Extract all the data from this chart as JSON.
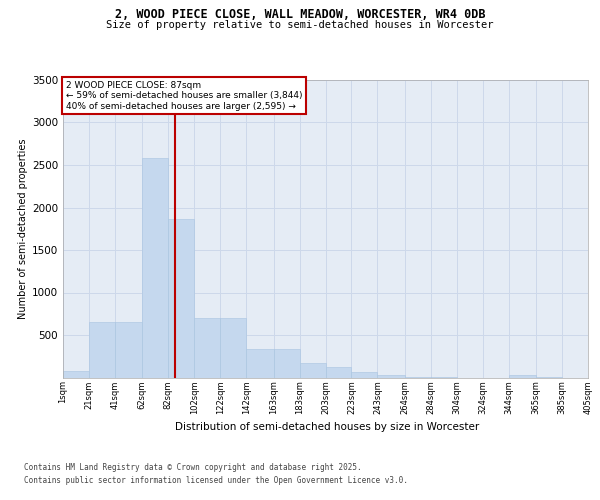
{
  "title1": "2, WOOD PIECE CLOSE, WALL MEADOW, WORCESTER, WR4 0DB",
  "title2": "Size of property relative to semi-detached houses in Worcester",
  "xlabel": "Distribution of semi-detached houses by size in Worcester",
  "ylabel": "Number of semi-detached properties",
  "annotation_title": "2 WOOD PIECE CLOSE: 87sqm",
  "annotation_line1": "← 59% of semi-detached houses are smaller (3,844)",
  "annotation_line2": "40% of semi-detached houses are larger (2,595) →",
  "footer1": "Contains HM Land Registry data © Crown copyright and database right 2025.",
  "footer2": "Contains public sector information licensed under the Open Government Licence v3.0.",
  "bin_edges": [
    1,
    21,
    41,
    62,
    82,
    102,
    122,
    142,
    163,
    183,
    203,
    223,
    243,
    264,
    284,
    304,
    324,
    344,
    365,
    385,
    405
  ],
  "bar_heights": [
    80,
    650,
    650,
    2580,
    1870,
    700,
    700,
    340,
    340,
    170,
    120,
    60,
    30,
    5,
    5,
    0,
    0,
    30,
    5,
    0
  ],
  "bar_color": "#c5d8ee",
  "bar_edge_color": "#a8c4e0",
  "vline_color": "#bb0000",
  "vline_x": 87,
  "annotation_box_color": "#bb0000",
  "grid_color": "#cdd8ea",
  "bg_color": "#e5ecf5",
  "ylim_max": 3500,
  "yticks": [
    500,
    1000,
    1500,
    2000,
    2500,
    3000,
    3500
  ],
  "xtick_labels": [
    "1sqm",
    "21sqm",
    "41sqm",
    "62sqm",
    "82sqm",
    "102sqm",
    "122sqm",
    "142sqm",
    "163sqm",
    "183sqm",
    "203sqm",
    "223sqm",
    "243sqm",
    "264sqm",
    "284sqm",
    "304sqm",
    "324sqm",
    "344sqm",
    "365sqm",
    "385sqm",
    "405sqm"
  ]
}
